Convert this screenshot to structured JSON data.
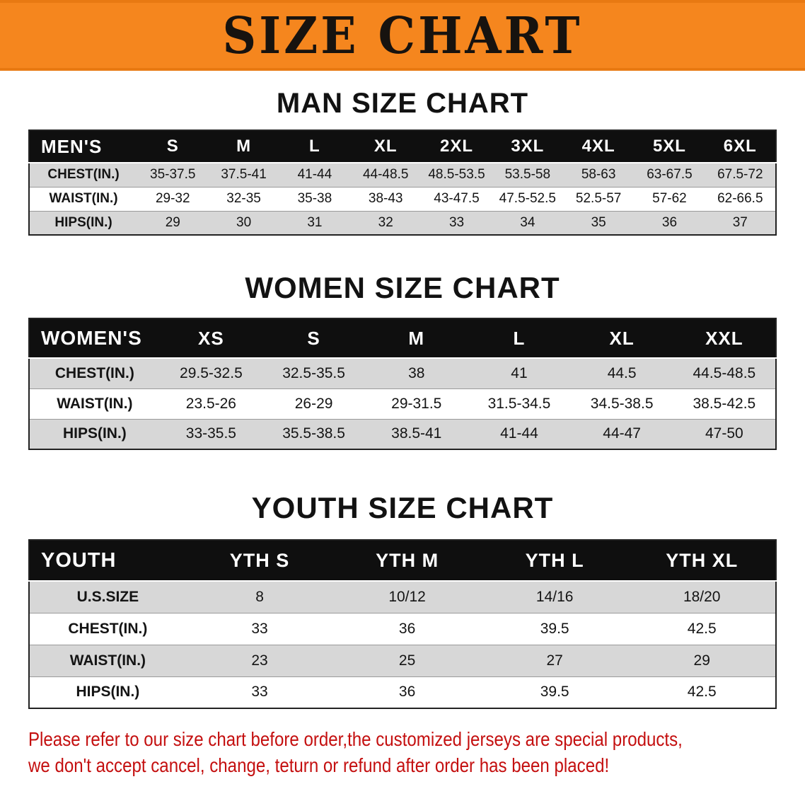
{
  "banner": {
    "title": "SIZE CHART"
  },
  "colors": {
    "banner_bg": "#f5861e",
    "header_bar": "#0f0f0f",
    "row_shade": "#d7d7d7",
    "disclaimer_red": "#c40f0f"
  },
  "sections": [
    {
      "id": "men",
      "heading": "MAN SIZE CHART",
      "table_title": "MEN'S",
      "columns": [
        "S",
        "M",
        "L",
        "XL",
        "2XL",
        "3XL",
        "4XL",
        "5XL",
        "6XL"
      ],
      "rows": [
        {
          "label": "CHEST(IN.)",
          "values": [
            "35-37.5",
            "37.5-41",
            "41-44",
            "44-48.5",
            "48.5-53.5",
            "53.5-58",
            "58-63",
            "63-67.5",
            "67.5-72"
          ]
        },
        {
          "label": "WAIST(IN.)",
          "values": [
            "29-32",
            "32-35",
            "35-38",
            "38-43",
            "43-47.5",
            "47.5-52.5",
            "52.5-57",
            "57-62",
            "62-66.5"
          ]
        },
        {
          "label": "HIPS(IN.)",
          "values": [
            "29",
            "30",
            "31",
            "32",
            "33",
            "34",
            "35",
            "36",
            "37"
          ]
        }
      ]
    },
    {
      "id": "women",
      "heading": "WOMEN SIZE CHART",
      "table_title": "WOMEN'S",
      "columns": [
        "XS",
        "S",
        "M",
        "L",
        "XL",
        "XXL"
      ],
      "rows": [
        {
          "label": "CHEST(IN.)",
          "values": [
            "29.5-32.5",
            "32.5-35.5",
            "38",
            "41",
            "44.5",
            "44.5-48.5"
          ]
        },
        {
          "label": "WAIST(IN.)",
          "values": [
            "23.5-26",
            "26-29",
            "29-31.5",
            "31.5-34.5",
            "34.5-38.5",
            "38.5-42.5"
          ]
        },
        {
          "label": "HIPS(IN.)",
          "values": [
            "33-35.5",
            "35.5-38.5",
            "38.5-41",
            "41-44",
            "44-47",
            "47-50"
          ]
        }
      ]
    },
    {
      "id": "youth",
      "heading": "YOUTH SIZE CHART",
      "table_title": "YOUTH",
      "columns": [
        "YTH S",
        "YTH M",
        "YTH L",
        "YTH XL"
      ],
      "rows": [
        {
          "label": "U.S.SIZE",
          "values": [
            "8",
            "10/12",
            "14/16",
            "18/20"
          ]
        },
        {
          "label": "CHEST(IN.)",
          "values": [
            "33",
            "36",
            "39.5",
            "42.5"
          ]
        },
        {
          "label": "WAIST(IN.)",
          "values": [
            "23",
            "25",
            "27",
            "29"
          ]
        },
        {
          "label": "HIPS(IN.)",
          "values": [
            "33",
            "36",
            "39.5",
            "42.5"
          ]
        }
      ]
    }
  ],
  "disclaimer": {
    "line1": "Please refer to our size chart before order,the customized jerseys are special products,",
    "line2": "we don't accept cancel, change, teturn or refund after order has been placed!"
  }
}
